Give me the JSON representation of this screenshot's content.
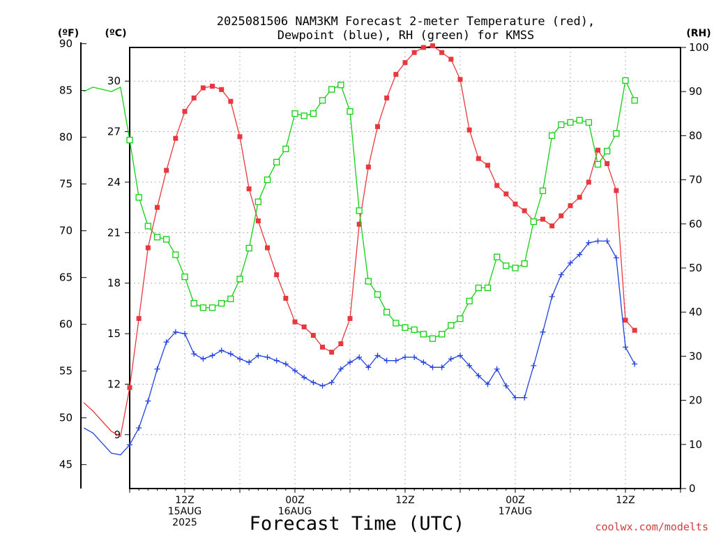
{
  "chart_data": {
    "type": "line",
    "title_line1": "2025081506 NAM3KM Forecast 2-meter Temperature (red),",
    "title_line2": "Dewpoint (blue), RH (green) for KMSS",
    "xlabel": "Forecast Time (UTC)",
    "credit": "coolwx.com/modelts",
    "left_outer_unit": "(ºF)",
    "left_inner_unit": "(ºC)",
    "right_unit": "(RH)",
    "grid": true,
    "colors": {
      "temperature": "#e8383d",
      "dewpoint": "#2040e0",
      "rh": "#10d010",
      "grid": "#b0b0b0"
    },
    "x_start_hours": 1,
    "x_step_hours": 1,
    "x_ticks": [
      {
        "hour": 12,
        "lines": [
          "12Z",
          "15AUG",
          "2025"
        ]
      },
      {
        "hour": 24,
        "lines": [
          "00Z",
          "16AUG"
        ]
      },
      {
        "hour": 36,
        "lines": [
          "12Z"
        ]
      },
      {
        "hour": 48,
        "lines": [
          "00Z",
          "17AUG"
        ]
      },
      {
        "hour": 60,
        "lines": [
          "12Z"
        ]
      }
    ],
    "x_range_hours": [
      6,
      66
    ],
    "celsius_axis": {
      "range": [
        5.8,
        32.0
      ],
      "ticks": [
        9,
        12,
        15,
        18,
        21,
        24,
        27,
        30
      ]
    },
    "fahrenheit_axis": {
      "ticks": [
        45,
        50,
        55,
        60,
        65,
        70,
        75,
        80,
        85,
        90
      ]
    },
    "rh_axis": {
      "range": [
        0,
        100
      ],
      "ticks": [
        0,
        10,
        20,
        30,
        40,
        50,
        60,
        70,
        80,
        90,
        100
      ]
    },
    "series": [
      {
        "name": "Temperature",
        "units": "C",
        "values": [
          10.9,
          10.4,
          9.8,
          9.2,
          8.9,
          11.8,
          15.9,
          20.1,
          22.5,
          24.7,
          26.6,
          28.2,
          29.0,
          29.6,
          29.7,
          29.5,
          28.8,
          26.7,
          23.6,
          21.7,
          20.1,
          18.5,
          17.1,
          15.7,
          15.4,
          14.9,
          14.2,
          13.9,
          14.4,
          15.9,
          21.5,
          24.9,
          27.3,
          29.0,
          30.4,
          31.1,
          31.7,
          32.0,
          32.1,
          31.7,
          31.3,
          30.1,
          27.1,
          25.4,
          25.0,
          23.8,
          23.3,
          22.7,
          22.3,
          21.7,
          21.8,
          21.4,
          22.0,
          22.6,
          23.1,
          24.0,
          25.9,
          25.1,
          23.5,
          15.8,
          15.2
        ]
      },
      {
        "name": "Dewpoint",
        "units": "C",
        "values": [
          9.4,
          9.1,
          8.5,
          7.9,
          7.8,
          8.4,
          9.4,
          11.0,
          12.9,
          14.5,
          15.1,
          15.0,
          13.8,
          13.5,
          13.7,
          14.0,
          13.8,
          13.5,
          13.3,
          13.7,
          13.6,
          13.4,
          13.2,
          12.8,
          12.4,
          12.1,
          11.9,
          12.1,
          12.9,
          13.3,
          13.6,
          13.0,
          13.7,
          13.4,
          13.4,
          13.6,
          13.6,
          13.3,
          13.0,
          13.0,
          13.5,
          13.7,
          13.1,
          12.5,
          12.0,
          12.9,
          11.9,
          11.2,
          11.2,
          13.1,
          15.1,
          17.2,
          18.5,
          19.2,
          19.7,
          20.4,
          20.5,
          20.5,
          19.5,
          14.2,
          13.2
        ]
      },
      {
        "name": "RH",
        "units": "%",
        "values": [
          90,
          91,
          90.5,
          90,
          91,
          79,
          66,
          59.5,
          57,
          56.5,
          53,
          48,
          42,
          41,
          41,
          42,
          43,
          47.5,
          54.5,
          65,
          70,
          74,
          77,
          85,
          84.5,
          85,
          88,
          90.5,
          91.5,
          85.5,
          63,
          47,
          44,
          40,
          37.5,
          36.5,
          36,
          35,
          34,
          35,
          37,
          38.5,
          42.5,
          45.5,
          45.5,
          52.5,
          50.5,
          50,
          51,
          60.5,
          67.5,
          80,
          82.5,
          83,
          83.5,
          83,
          73.5,
          76.5,
          80.5,
          92.5,
          88
        ]
      }
    ]
  }
}
